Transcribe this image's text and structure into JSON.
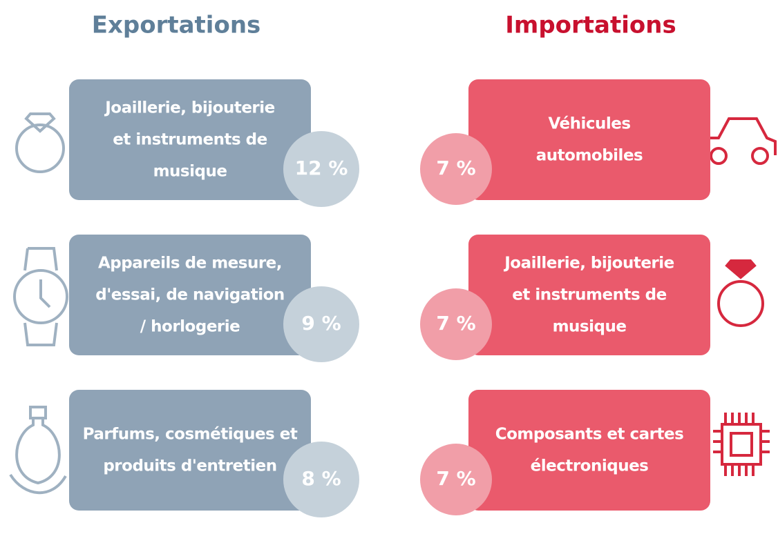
{
  "exports": {
    "title": "Exportations",
    "items": [
      {
        "lines": [
          "Joaillerie, bijouterie",
          "et instruments de",
          "musique"
        ],
        "share": "12 %"
      },
      {
        "lines": [
          "Appareils de mesure,",
          "d'essai, de navigation",
          "/ horlogerie"
        ],
        "share": "9 %"
      },
      {
        "lines": [
          "Parfums, cosmétiques et",
          "produits d'entretien"
        ],
        "share": "8 %"
      }
    ]
  },
  "imports": {
    "title": "Importations",
    "items": [
      {
        "lines": [
          "Véhicules",
          "automobiles"
        ],
        "share": "7 %"
      },
      {
        "lines": [
          "Joaillerie, bijouterie",
          "et instruments de",
          "musique"
        ],
        "share": "7 %"
      },
      {
        "lines": [
          "Composants et cartes",
          "électroniques"
        ],
        "share": "7 %"
      }
    ]
  }
}
